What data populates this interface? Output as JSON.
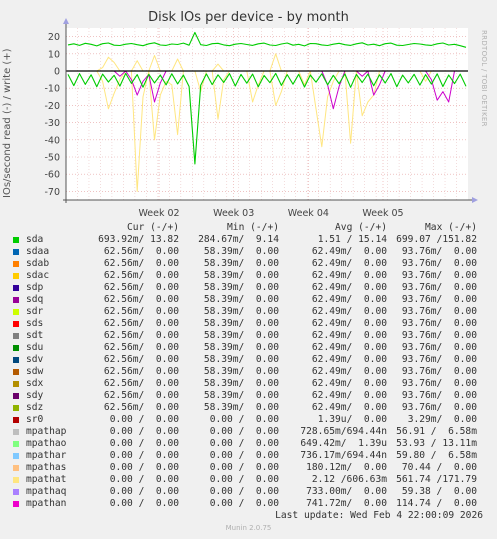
{
  "header": {
    "title": "Disk IOs per device - by month",
    "side_label": "RRDTOOL / TOBI OETIKER"
  },
  "chart_data": {
    "type": "line",
    "title": "Disk IOs per device - by month",
    "ylabel": "IOs/second read (-) / write (+)",
    "ylim": [
      -75,
      25
    ],
    "yticks": [
      20,
      10,
      0,
      -10,
      -20,
      -30,
      -40,
      -50,
      -60,
      -70
    ],
    "xlim": [
      0,
      35
    ],
    "xticks": [
      {
        "label": "Week 02",
        "x": 8.1
      },
      {
        "label": "Week 03",
        "x": 14.6
      },
      {
        "label": "Week 04",
        "x": 21.1
      },
      {
        "label": "Week 05",
        "x": 27.6
      }
    ],
    "grid": true,
    "series": [
      {
        "name": "sda write",
        "color": "#00cc00",
        "values": [
          15.2,
          15.8,
          14.9,
          16.1,
          15.5,
          14.6,
          15.9,
          16.3,
          15.0,
          14.8,
          15.6,
          16.0,
          15.3,
          14.7,
          15.8,
          16.4,
          15.1,
          14.9,
          15.7,
          15.4,
          16.2,
          15.0,
          22.4,
          15.3,
          14.8,
          15.9,
          16.1,
          15.2,
          14.7,
          15.6,
          16.0,
          15.4,
          14.9,
          15.8,
          16.2,
          15.1,
          14.8,
          15.7,
          16.3,
          15.0,
          15.5,
          14.6,
          16.0,
          15.9,
          15.2,
          14.8,
          15.6,
          16.1,
          15.3,
          14.9,
          15.8,
          16.4,
          15.1,
          15.6,
          14.7,
          15.9,
          16.2,
          15.0,
          14.8,
          15.4,
          16.0,
          15.7,
          15.2,
          14.9,
          15.8,
          16.3,
          15.1,
          15.5,
          14.7,
          13.8
        ]
      },
      {
        "name": "sda read",
        "color": "#00cc00",
        "values": [
          -2.0,
          -8.5,
          -1.5,
          -7.8,
          -2.2,
          -9.1,
          -1.8,
          -6.4,
          -2.5,
          -8.8,
          -1.4,
          -7.2,
          -2.1,
          -9.4,
          -1.9,
          -6.9,
          -2.3,
          -8.1,
          -1.6,
          -7.5,
          -2.4,
          -9.0,
          -54.0,
          -8.3,
          -1.7,
          -7.9,
          -2.2,
          -6.6,
          -1.5,
          -8.7,
          -2.0,
          -7.1,
          -1.8,
          -9.2,
          -2.6,
          -6.8,
          -1.4,
          -8.4,
          -2.1,
          -7.7,
          -1.9,
          -9.3,
          -2.3,
          -6.5,
          -1.6,
          -8.0,
          -2.5,
          -7.4,
          -1.7,
          -9.5,
          -2.0,
          -6.7,
          -1.8,
          -8.6,
          -2.2,
          -7.0,
          -1.5,
          -9.1,
          -2.4,
          -6.9,
          -1.9,
          -8.2,
          -2.1,
          -7.6,
          -1.6,
          -9.0,
          -2.3,
          -7.3,
          -1.8,
          -8.9
        ]
      },
      {
        "name": "mpathat write",
        "color": "#ffe680",
        "values": [
          0,
          0,
          0,
          0,
          0,
          0,
          2,
          8,
          5,
          0,
          0,
          0,
          6,
          0,
          0,
          9,
          0,
          0,
          0,
          7,
          0,
          0,
          0,
          0,
          0,
          0,
          4,
          0,
          0,
          0,
          0,
          0,
          0,
          0,
          0,
          0,
          10,
          0,
          0,
          0,
          0,
          0,
          0,
          0,
          0,
          0,
          0,
          0,
          0,
          0,
          0,
          0,
          0,
          0,
          0,
          0,
          0,
          0,
          0,
          0,
          0,
          0,
          0,
          0,
          0,
          0,
          0,
          0,
          0,
          0
        ]
      },
      {
        "name": "mpathat read",
        "color": "#ffe680",
        "values": [
          0,
          0,
          0,
          0,
          0,
          0,
          -6,
          -22,
          -13,
          -5,
          0,
          0,
          -70,
          -15,
          0,
          -40,
          -14,
          -6,
          -8,
          -37,
          0,
          0,
          0,
          -12,
          0,
          0,
          -28,
          -5,
          0,
          0,
          0,
          0,
          -18,
          -8,
          0,
          0,
          -20,
          -12,
          0,
          0,
          0,
          -8,
          0,
          -22,
          -44,
          -15,
          -6,
          0,
          0,
          -42,
          0,
          -26,
          -18,
          -14,
          0,
          0,
          0,
          0,
          0,
          0,
          0,
          0,
          -6,
          0,
          0,
          0,
          0,
          0,
          0,
          0
        ]
      },
      {
        "name": "mpathan read",
        "color": "#cc00cc",
        "values": [
          0,
          0,
          0,
          0,
          0,
          0,
          0,
          0,
          0,
          -3,
          0,
          -5,
          -14,
          -6,
          -2,
          -18,
          -7,
          0,
          0,
          0,
          0,
          0,
          0,
          0,
          0,
          0,
          0,
          0,
          0,
          0,
          0,
          0,
          0,
          0,
          0,
          0,
          0,
          0,
          0,
          0,
          0,
          0,
          0,
          0,
          0,
          -8,
          -22,
          -9,
          0,
          0,
          0,
          -3,
          0,
          -14,
          -8,
          0,
          0,
          0,
          0,
          0,
          0,
          0,
          0,
          -5,
          -17,
          -12,
          -18,
          0,
          0,
          0
        ]
      }
    ]
  },
  "legend": {
    "headers": {
      "cur": "Cur (-/+)",
      "min": "Min (-/+)",
      "avg": "Avg (-/+)",
      "max": "Max (-/+)"
    },
    "rows": [
      {
        "name": "sda",
        "color": "#00cc00",
        "cur": "693.92m/ 13.82",
        "min": "284.67m/  9.14",
        "avg": "1.51 / 15.14",
        "max": "699.07 /151.82"
      },
      {
        "name": "sdaa",
        "color": "#0066b3",
        "cur": "62.56m/  0.00",
        "min": "58.39m/  0.00",
        "avg": "62.49m/  0.00",
        "max": "93.76m/  0.00"
      },
      {
        "name": "sdab",
        "color": "#ff8000",
        "cur": "62.56m/  0.00",
        "min": "58.39m/  0.00",
        "avg": "62.49m/  0.00",
        "max": "93.76m/  0.00"
      },
      {
        "name": "sdac",
        "color": "#ffcc00",
        "cur": "62.56m/  0.00",
        "min": "58.39m/  0.00",
        "avg": "62.49m/  0.00",
        "max": "93.76m/  0.00"
      },
      {
        "name": "sdp",
        "color": "#330099",
        "cur": "62.56m/  0.00",
        "min": "58.39m/  0.00",
        "avg": "62.49m/  0.00",
        "max": "93.76m/  0.00"
      },
      {
        "name": "sdq",
        "color": "#990099",
        "cur": "62.56m/  0.00",
        "min": "58.39m/  0.00",
        "avg": "62.49m/  0.00",
        "max": "93.76m/  0.00"
      },
      {
        "name": "sdr",
        "color": "#ccff00",
        "cur": "62.56m/  0.00",
        "min": "58.39m/  0.00",
        "avg": "62.49m/  0.00",
        "max": "93.76m/  0.00"
      },
      {
        "name": "sds",
        "color": "#ff0000",
        "cur": "62.56m/  0.00",
        "min": "58.39m/  0.00",
        "avg": "62.49m/  0.00",
        "max": "93.76m/  0.00"
      },
      {
        "name": "sdt",
        "color": "#808080",
        "cur": "62.56m/  0.00",
        "min": "58.39m/  0.00",
        "avg": "62.49m/  0.00",
        "max": "93.76m/  0.00"
      },
      {
        "name": "sdu",
        "color": "#008f00",
        "cur": "62.56m/  0.00",
        "min": "58.39m/  0.00",
        "avg": "62.49m/  0.00",
        "max": "93.76m/  0.00"
      },
      {
        "name": "sdv",
        "color": "#00487d",
        "cur": "62.56m/  0.00",
        "min": "58.39m/  0.00",
        "avg": "62.49m/  0.00",
        "max": "93.76m/  0.00"
      },
      {
        "name": "sdw",
        "color": "#b35a00",
        "cur": "62.56m/  0.00",
        "min": "58.39m/  0.00",
        "avg": "62.49m/  0.00",
        "max": "93.76m/  0.00"
      },
      {
        "name": "sdx",
        "color": "#b38f00",
        "cur": "62.56m/  0.00",
        "min": "58.39m/  0.00",
        "avg": "62.49m/  0.00",
        "max": "93.76m/  0.00"
      },
      {
        "name": "sdy",
        "color": "#6b006b",
        "cur": "62.56m/  0.00",
        "min": "58.39m/  0.00",
        "avg": "62.49m/  0.00",
        "max": "93.76m/  0.00"
      },
      {
        "name": "sdz",
        "color": "#8fb300",
        "cur": "62.56m/  0.00",
        "min": "58.39m/  0.00",
        "avg": "62.49m/  0.00",
        "max": "93.76m/  0.00"
      },
      {
        "name": "sr0",
        "color": "#b30000",
        "cur": "0.00 /  0.00",
        "min": "0.00 /  0.00",
        "avg": "1.39u/  0.00",
        "max": "3.29m/  0.00"
      },
      {
        "name": "mpathap",
        "color": "#bebebe",
        "cur": "0.00 /  0.00",
        "min": "0.00 /  0.00",
        "avg": "728.65m/694.44n",
        "max": "56.91 /  6.58m"
      },
      {
        "name": "mpathao",
        "color": "#80ff80",
        "cur": "0.00 /  0.00",
        "min": "0.00 /  0.00",
        "avg": "649.42m/  1.39u",
        "max": "53.93 / 13.11m"
      },
      {
        "name": "mpathar",
        "color": "#80c9ff",
        "cur": "0.00 /  0.00",
        "min": "0.00 /  0.00",
        "avg": "736.17m/694.44n",
        "max": "59.80 /  6.58m"
      },
      {
        "name": "mpathas",
        "color": "#ffc080",
        "cur": "0.00 /  0.00",
        "min": "0.00 /  0.00",
        "avg": "180.12m/  0.00",
        "max": "70.44 /  0.00"
      },
      {
        "name": "mpathat",
        "color": "#ffe680",
        "cur": "0.00 /  0.00",
        "min": "0.00 /  0.00",
        "avg": "2.12 /606.63m",
        "max": "561.74 /171.79"
      },
      {
        "name": "mpathaq",
        "color": "#aa80ff",
        "cur": "0.00 /  0.00",
        "min": "0.00 /  0.00",
        "avg": "733.00m/  0.00",
        "max": "59.38 /  0.00"
      },
      {
        "name": "mpathan",
        "color": "#ee00cc",
        "cur": "0.00 /  0.00",
        "min": "0.00 /  0.00",
        "avg": "741.72m/  0.00",
        "max": "114.74 /  0.00"
      }
    ]
  },
  "footer": {
    "last_update": "Last update: Wed Feb  4 22:00:09 2026",
    "version": "Munin 2.0.75"
  }
}
